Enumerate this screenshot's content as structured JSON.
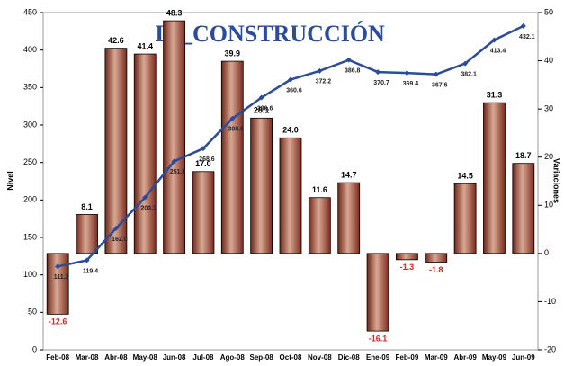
{
  "chart_data": {
    "type": "bar-line",
    "title": "IC_CONSTRUCCIÓN",
    "y_label": "Nivel",
    "y2_label": "Variaciones",
    "categories": [
      "Feb-08",
      "Mar-08",
      "Abr-08",
      "May-08",
      "Jun-08",
      "Jul-08",
      "Ago-08",
      "Sep-08",
      "Oct-08",
      "Nov-08",
      "Dic-08",
      "Ene-09",
      "Feb-09",
      "Mar-09",
      "Abr-09",
      "May-09",
      "Jun-09"
    ],
    "series": [
      {
        "name": "Variaciones",
        "type": "bar",
        "axis": "y2",
        "color": "#9b4a3a",
        "values": [
          -12.6,
          8.1,
          42.6,
          41.4,
          48.3,
          17.0,
          39.9,
          28.1,
          24.0,
          11.6,
          14.7,
          -16.1,
          -1.3,
          -1.8,
          14.5,
          31.3,
          18.7
        ],
        "value_labels": [
          "-12.6",
          "8.1",
          "42.6",
          "41.4",
          "48.3",
          "17.0",
          "39.9",
          "28.1",
          "24.0",
          "11.6",
          "14.7",
          "-16.1",
          "-1.3",
          "-1.8",
          "14.5",
          "31.3",
          "18.7"
        ]
      },
      {
        "name": "Nivel",
        "type": "line",
        "axis": "y",
        "color": "#2b4b9b",
        "values": [
          111.2,
          119.4,
          162.0,
          203.3,
          251.6,
          268.6,
          308.6,
          336.6,
          360.6,
          372.2,
          386.8,
          370.7,
          369.4,
          367.6,
          382.1,
          413.4,
          432.1
        ],
        "value_labels": [
          "111.2",
          "119.4",
          "162.0",
          "203.3",
          "251.6",
          "268.6",
          "308.6",
          "336.6",
          "360.6",
          "372.2",
          "386.8",
          "370.7",
          "369.4",
          "367.6",
          "382.1",
          "413.4",
          "432.1"
        ]
      }
    ],
    "ylim": [
      0,
      450
    ],
    "yticks": [
      0,
      50,
      100,
      150,
      200,
      250,
      300,
      350,
      400,
      450
    ],
    "y2lim": [
      -20,
      50
    ],
    "y2ticks": [
      -20,
      -10,
      0,
      10,
      20,
      30,
      40,
      50
    ]
  }
}
